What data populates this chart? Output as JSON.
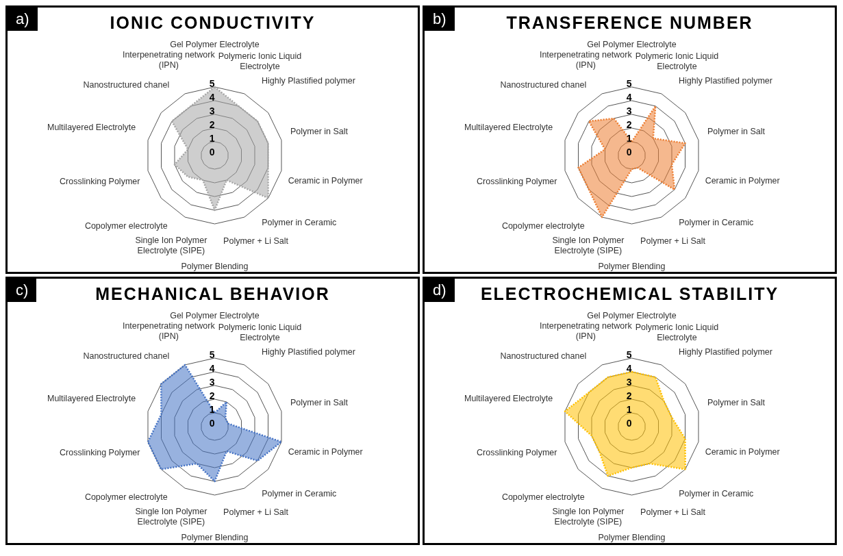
{
  "chart_data": [
    {
      "type": "radar",
      "title": "IONIC CONDUCTIVITY",
      "annotations": [
        "a)"
      ],
      "categories": [
        "Gel Polymer Electrolyte",
        "Polymeric Ionic Liquid Electrolyte",
        "Highly Plastified polymer",
        "Polymer in Salt",
        "Ceramic in Polymer",
        "Polymer in Ceramic",
        "Polymer + Li Salt",
        "Polymer Blending",
        "Single Ion Polymer Electrolyte (SIPE)",
        "Copolymer electrolyte",
        "Crosslinking Polymer",
        "Multilayered Electrolyte",
        "Nanostructured chanel",
        "Interpenetrating network (IPN)"
      ],
      "series": [
        {
          "color": "#a6a6a6",
          "values": [
            5,
            4,
            4,
            4,
            4,
            5,
            2,
            4,
            2,
            2.5,
            3,
            2,
            4,
            4
          ]
        }
      ],
      "ylim": [
        0,
        5
      ],
      "yticks": [
        0,
        1,
        2,
        3,
        4,
        5
      ],
      "grid": true,
      "marker": "none",
      "line_style": "dotted"
    },
    {
      "type": "radar",
      "title": "TRANSFERENCE NUMBER",
      "annotations": [
        "b)"
      ],
      "categories": [
        "Gel Polymer Electrolyte",
        "Polymeric Ionic Liquid Electrolyte",
        "Highly Plastified polymer",
        "Polymer in Salt",
        "Ceramic in Polymer",
        "Polymer in Ceramic",
        "Polymer + Li Salt",
        "Polymer Blending",
        "Single Ion Polymer Electrolyte (SIPE)",
        "Copolymer electrolyte",
        "Crosslinking Polymer",
        "Multilayered Electrolyte",
        "Nanostructured chanel",
        "Interpenetrating network (IPN)"
      ],
      "series": [
        {
          "color": "#ed7d31",
          "values": [
            1,
            4,
            2,
            4,
            3,
            4,
            1,
            1,
            5,
            4,
            4,
            2,
            4,
            3
          ]
        }
      ],
      "ylim": [
        0,
        5
      ],
      "yticks": [
        0,
        1,
        2,
        3,
        4,
        5
      ],
      "grid": true,
      "marker": "none",
      "line_style": "dotted"
    },
    {
      "type": "radar",
      "title": "MECHANICAL BEHAVIOR",
      "annotations": [
        "c)"
      ],
      "categories": [
        "Gel Polymer Electrolyte",
        "Polymeric Ionic Liquid Electrolyte",
        "Highly Plastified polymer",
        "Polymer in Salt",
        "Ceramic in Polymer",
        "Polymer in Ceramic",
        "Polymer + Li Salt",
        "Polymer Blending",
        "Single Ion Polymer Electrolyte (SIPE)",
        "Copolymer electrolyte",
        "Crosslinking Polymer",
        "Multilayered Electrolyte",
        "Nanostructured chanel",
        "Interpenetrating network (IPN)"
      ],
      "series": [
        {
          "color": "#4472c4",
          "values": [
            1,
            2,
            1,
            1,
            5,
            4,
            2,
            4,
            3,
            5,
            5,
            4,
            5,
            5
          ]
        }
      ],
      "ylim": [
        0,
        5
      ],
      "yticks": [
        0,
        1,
        2,
        3,
        4,
        5
      ],
      "grid": true,
      "marker": "none",
      "line_style": "dotted"
    },
    {
      "type": "radar",
      "title": "ELECTROCHEMICAL STABILITY",
      "annotations": [
        "d)"
      ],
      "categories": [
        "Gel Polymer Electrolyte",
        "Polymeric Ionic Liquid Electrolyte",
        "Highly Plastified polymer",
        "Polymer in Salt",
        "Ceramic in Polymer",
        "Polymer in Ceramic",
        "Polymer + Li Salt",
        "Polymer Blending",
        "Single Ion Polymer Electrolyte (SIPE)",
        "Copolymer electrolyte",
        "Crosslinking Polymer",
        "Multilayered Electrolyte",
        "Nanostructured chanel",
        "Interpenetrating network (IPN)"
      ],
      "series": [
        {
          "color": "#ffc000",
          "values": [
            4,
            4,
            3,
            3,
            4,
            5,
            3,
            3,
            4,
            3,
            3,
            5,
            4,
            4
          ]
        }
      ],
      "ylim": [
        0,
        5
      ],
      "yticks": [
        0,
        1,
        2,
        3,
        4,
        5
      ],
      "grid": true,
      "marker": "none",
      "line_style": "dotted"
    }
  ]
}
